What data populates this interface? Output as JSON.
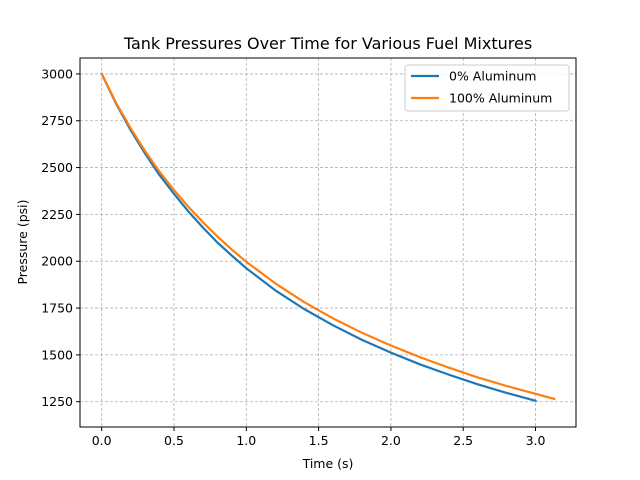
{
  "chart_data": {
    "type": "line",
    "title": "Tank Pressures Over Time for Various Fuel Mixtures",
    "xlabel": "Time (s)",
    "ylabel": "Pressure (psi)",
    "xlim": [
      -0.15,
      3.28
    ],
    "ylim": [
      1115,
      3085
    ],
    "xticks": [
      0.0,
      0.5,
      1.0,
      1.5,
      2.0,
      2.5,
      3.0
    ],
    "xtick_labels": [
      "0.0",
      "0.5",
      "1.0",
      "1.5",
      "2.0",
      "2.5",
      "3.0"
    ],
    "yticks": [
      1250,
      1500,
      1750,
      2000,
      2250,
      2500,
      2750,
      3000
    ],
    "ytick_labels": [
      "1250",
      "1500",
      "1750",
      "2000",
      "2250",
      "2500",
      "2750",
      "3000"
    ],
    "grid": true,
    "legend_position": "top-right",
    "series": [
      {
        "name": "0% Aluminum",
        "color": "#1f77b4",
        "x": [
          0.0,
          0.1,
          0.2,
          0.3,
          0.4,
          0.5,
          0.6,
          0.7,
          0.8,
          0.9,
          1.0,
          1.2,
          1.4,
          1.6,
          1.8,
          2.0,
          2.2,
          2.4,
          2.6,
          2.8,
          3.0
        ],
        "y": [
          3000,
          2840,
          2700,
          2575,
          2460,
          2360,
          2265,
          2180,
          2100,
          2030,
          1962,
          1845,
          1745,
          1658,
          1580,
          1512,
          1450,
          1395,
          1343,
          1297,
          1255
        ]
      },
      {
        "name": "100% Aluminum",
        "color": "#ff7f0e",
        "x": [
          0.0,
          0.1,
          0.2,
          0.3,
          0.4,
          0.5,
          0.6,
          0.7,
          0.8,
          0.9,
          1.0,
          1.2,
          1.4,
          1.6,
          1.8,
          2.0,
          2.2,
          2.4,
          2.6,
          2.8,
          3.0,
          3.13
        ],
        "y": [
          3000,
          2845,
          2710,
          2588,
          2478,
          2380,
          2290,
          2208,
          2132,
          2062,
          1997,
          1882,
          1782,
          1695,
          1618,
          1550,
          1488,
          1432,
          1380,
          1334,
          1292,
          1265
        ]
      }
    ]
  }
}
